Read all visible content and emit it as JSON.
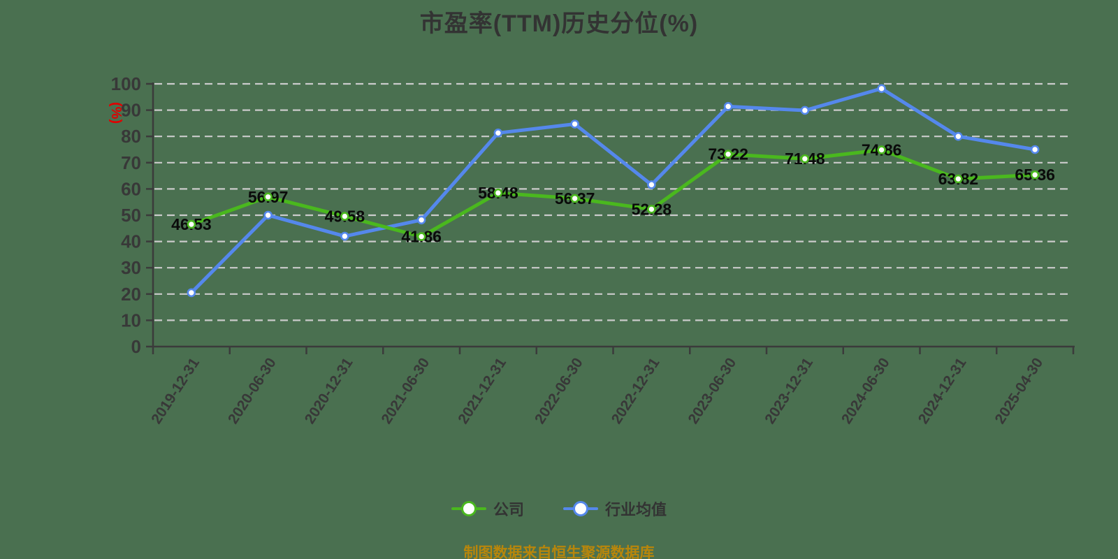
{
  "header": {
    "title": "市盈率(TTM)历史分位(%)"
  },
  "footer": {
    "text": "制图数据来自恒生聚源数据库"
  },
  "colors": {
    "background": "#4a7050",
    "grid": "#cbcbcb",
    "axis": "#3b3b3b",
    "axis_text": "#383838",
    "title_text": "#333333",
    "data_label": "#0a0a0a",
    "y_unit": "#e00000",
    "legend_text": "#333333",
    "footer_text": "#b8860b",
    "company_line": "#4ab81e",
    "industry_line": "#5588ec",
    "marker_fill": "#ffffff"
  },
  "chart_data": {
    "type": "line",
    "title": "市盈率(TTM)历史分位(%)",
    "xlabel": "",
    "ylabel": "(%)",
    "ylim": [
      0,
      100
    ],
    "ytick_interval": 10,
    "yticks": [
      0,
      10,
      20,
      30,
      40,
      50,
      60,
      70,
      80,
      90,
      100
    ],
    "grid": "horizontal-dashed",
    "legend_position": "bottom",
    "categories": [
      "2019-12-31",
      "2020-06-30",
      "2020-12-31",
      "2021-06-30",
      "2021-12-31",
      "2022-06-30",
      "2022-12-31",
      "2023-06-30",
      "2023-12-31",
      "2024-06-30",
      "2024-12-31",
      "2025-04-30"
    ],
    "series": [
      {
        "id": "company",
        "name": "公司",
        "color": "#4ab81e",
        "values": [
          46.53,
          56.97,
          49.58,
          41.86,
          58.48,
          56.37,
          52.28,
          73.22,
          71.48,
          74.86,
          63.82,
          65.36
        ],
        "labels": [
          "46.53",
          "56.97",
          "49.58",
          "41.86",
          "58.48",
          "56.37",
          "52.28",
          "73.22",
          "71.48",
          "74.86",
          "63.82",
          "65.36"
        ],
        "labels_visible": true
      },
      {
        "id": "industry",
        "name": "行业均值",
        "color": "#5588ec",
        "values": [
          20.5,
          50,
          42,
          48.2,
          81.3,
          84.7,
          61.6,
          91.4,
          89.9,
          98.2,
          80,
          75
        ],
        "labels": [],
        "labels_visible": false
      }
    ]
  }
}
